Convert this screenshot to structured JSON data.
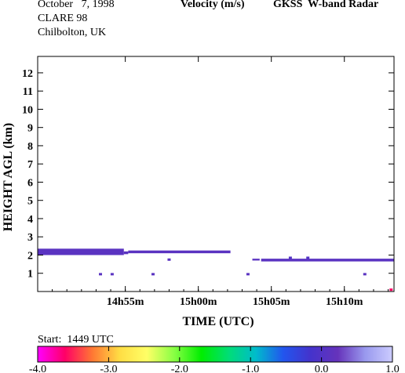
{
  "header": {
    "date": "October   7, 1998",
    "campaign": "CLARE 98",
    "location": "Chilbolton, UK",
    "quantity": "Velocity (m/s)",
    "instrument": "GKSS  W-band Radar"
  },
  "chart_data": {
    "type": "heatmap",
    "xlabel": "TIME (UTC)",
    "ylabel": "HEIGHT AGL (km)",
    "x_unit": "minutes after 14h49m UTC",
    "xlim": [
      0,
      24.4
    ],
    "ylim": [
      0,
      12.9
    ],
    "x_ticks": [
      {
        "value": 6,
        "label": "14h55m"
      },
      {
        "value": 11,
        "label": "15h00m"
      },
      {
        "value": 16,
        "label": "15h05m"
      },
      {
        "value": 21,
        "label": "15h10m"
      }
    ],
    "y_ticks": [
      1,
      2,
      3,
      4,
      5,
      6,
      7,
      8,
      9,
      10,
      11,
      12
    ],
    "color_scale": {
      "min": -4.0,
      "max": 1.0,
      "tick_labels": [
        "-4.0",
        "-3.0",
        "-2.0",
        "-1.0",
        "0.0",
        "1.0"
      ],
      "stops": [
        "#ff00ff",
        "#ff0066",
        "#ff7733",
        "#ffdd44",
        "#ffff66",
        "#88ff44",
        "#00ee00",
        "#00dd77",
        "#00bbcc",
        "#2255ee",
        "#4433cc",
        "#6633bb",
        "#9999ee",
        "#ccccff"
      ]
    },
    "layers": [
      {
        "t0": 0.0,
        "t1": 5.9,
        "h0": 2.15,
        "h1": 2.35,
        "velocity": 0.1
      },
      {
        "t0": 5.9,
        "t1": 6.2,
        "h0": 2.05,
        "h1": 2.2,
        "velocity": 0.1
      },
      {
        "t0": 6.2,
        "t1": 13.2,
        "h0": 2.1,
        "h1": 2.25,
        "velocity": 0.1
      },
      {
        "t0": 0.0,
        "t1": 5.9,
        "h0": 2.0,
        "h1": 2.15,
        "velocity": 0.1
      },
      {
        "t0": 15.3,
        "t1": 24.4,
        "h0": 1.65,
        "h1": 1.8,
        "velocity": 0.1
      },
      {
        "t0": 14.7,
        "t1": 15.2,
        "h0": 1.7,
        "h1": 1.8,
        "velocity": 0.1
      }
    ],
    "points": [
      {
        "t": 4.3,
        "h": 0.95,
        "velocity": 0.1
      },
      {
        "t": 5.1,
        "h": 0.95,
        "velocity": 0.1
      },
      {
        "t": 7.9,
        "h": 0.95,
        "velocity": 0.1
      },
      {
        "t": 9.0,
        "h": 1.75,
        "velocity": 0.1
      },
      {
        "t": 14.4,
        "h": 0.95,
        "velocity": 0.1
      },
      {
        "t": 17.3,
        "h": 1.85,
        "velocity": 0.0
      },
      {
        "t": 18.5,
        "h": 1.85,
        "velocity": 0.0
      },
      {
        "t": 22.4,
        "h": 0.95,
        "velocity": 0.1
      },
      {
        "t": 24.2,
        "h": 0.1,
        "velocity": -3.6
      }
    ],
    "colorbar_label": "Start:  1449 UTC"
  }
}
